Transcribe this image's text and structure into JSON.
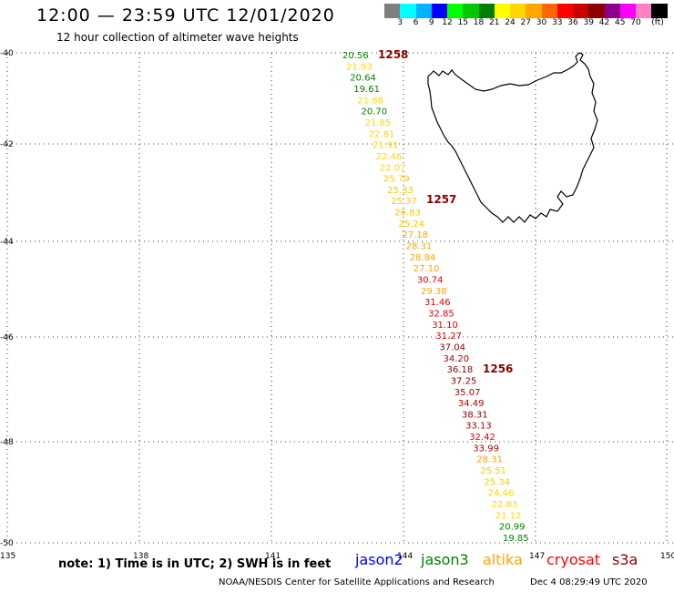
{
  "header": {
    "title": "12:00 — 23:59 UTC 12/01/2020",
    "subtitle": "12 hour collection of altimeter wave heights"
  },
  "scale": {
    "unit": "(ft)",
    "labels": [
      "3",
      "6",
      "9",
      "12",
      "15",
      "18",
      "21",
      "24",
      "27",
      "30",
      "33",
      "36",
      "39",
      "42",
      "45",
      "70"
    ],
    "colors": [
      "#7f7f7f",
      "#00ffff",
      "#00b3ff",
      "#0000ff",
      "#00ff00",
      "#00c800",
      "#008000",
      "#ffff00",
      "#ffd700",
      "#ffa500",
      "#ff6600",
      "#ff0000",
      "#c80000",
      "#8b0000",
      "#8b008b",
      "#ff00ff",
      "#ff80c0",
      "#000000"
    ]
  },
  "axes": {
    "lat_labels": [
      "-40",
      "-42",
      "-44",
      "-46",
      "-48",
      "-50"
    ],
    "lon_labels": [
      "135",
      "138",
      "141",
      "144",
      "147",
      "150"
    ]
  },
  "passes": [
    {
      "label": "1258",
      "color": "#8b0000"
    },
    {
      "label": "1257",
      "color": "#8b0000"
    },
    {
      "label": "1256",
      "color": "#8b0000"
    }
  ],
  "observations": [
    {
      "v": "20.56",
      "c": "#008000"
    },
    {
      "v": "21.93",
      "c": "#ffd700"
    },
    {
      "v": "20.64",
      "c": "#008000"
    },
    {
      "v": "19.61",
      "c": "#008000"
    },
    {
      "v": "21.88",
      "c": "#ffd700"
    },
    {
      "v": "20.70",
      "c": "#008000"
    },
    {
      "v": "21.85",
      "c": "#ffd700"
    },
    {
      "v": "22.81",
      "c": "#ffd700"
    },
    {
      "v": "21.91",
      "c": "#ffd700"
    },
    {
      "v": "22.46",
      "c": "#ffd700"
    },
    {
      "v": "22.07",
      "c": "#ffd700"
    },
    {
      "v": "25.79",
      "c": "#ffc800"
    },
    {
      "v": "25.33",
      "c": "#ffc800"
    },
    {
      "v": "25.37",
      "c": "#ffc800"
    },
    {
      "v": "26.83",
      "c": "#ffc800"
    },
    {
      "v": "25.24",
      "c": "#ffc800"
    },
    {
      "v": "27.18",
      "c": "#ffa500"
    },
    {
      "v": "28.31",
      "c": "#ffa500"
    },
    {
      "v": "28.84",
      "c": "#ffa500"
    },
    {
      "v": "27.10",
      "c": "#ffa500"
    },
    {
      "v": "30.74",
      "c": "#e00000"
    },
    {
      "v": "29.38",
      "c": "#ffa500"
    },
    {
      "v": "31.46",
      "c": "#e00000"
    },
    {
      "v": "32.85",
      "c": "#e00000"
    },
    {
      "v": "31.10",
      "c": "#e00000"
    },
    {
      "v": "31.27",
      "c": "#e00000"
    },
    {
      "v": "37.04",
      "c": "#8b0000"
    },
    {
      "v": "34.20",
      "c": "#b00000"
    },
    {
      "v": "36.18",
      "c": "#8b0000"
    },
    {
      "v": "37.25",
      "c": "#8b0000"
    },
    {
      "v": "35.07",
      "c": "#b00000"
    },
    {
      "v": "34.49",
      "c": "#b00000"
    },
    {
      "v": "38.31",
      "c": "#8b0000"
    },
    {
      "v": "33.13",
      "c": "#b00000"
    },
    {
      "v": "32.42",
      "c": "#e00000"
    },
    {
      "v": "33.99",
      "c": "#b00000"
    },
    {
      "v": "28.31",
      "c": "#ffa500"
    },
    {
      "v": "25.51",
      "c": "#ffc800"
    },
    {
      "v": "25.34",
      "c": "#ffc800"
    },
    {
      "v": "24.46",
      "c": "#ffd700"
    },
    {
      "v": "22.83",
      "c": "#ffd700"
    },
    {
      "v": "21.12",
      "c": "#ffd700"
    },
    {
      "v": "20.99",
      "c": "#008000"
    },
    {
      "v": "19.85",
      "c": "#008000"
    }
  ],
  "footer": {
    "note": "note:  1) Time is in UTC;  2) SWH is in feet",
    "legend": [
      {
        "name": "jason2",
        "color": "#0000ff"
      },
      {
        "name": "jason3",
        "color": "#008000"
      },
      {
        "name": "altika",
        "color": "#ffa500"
      },
      {
        "name": "cryosat",
        "color": "#ff0000"
      },
      {
        "name": "s3a",
        "color": "#8b0000"
      }
    ],
    "credit": "NOAA/NESDIS Center for Satellite Applications and Research",
    "timestamp": "Dec  4 08:29:49 UTC 2020"
  }
}
